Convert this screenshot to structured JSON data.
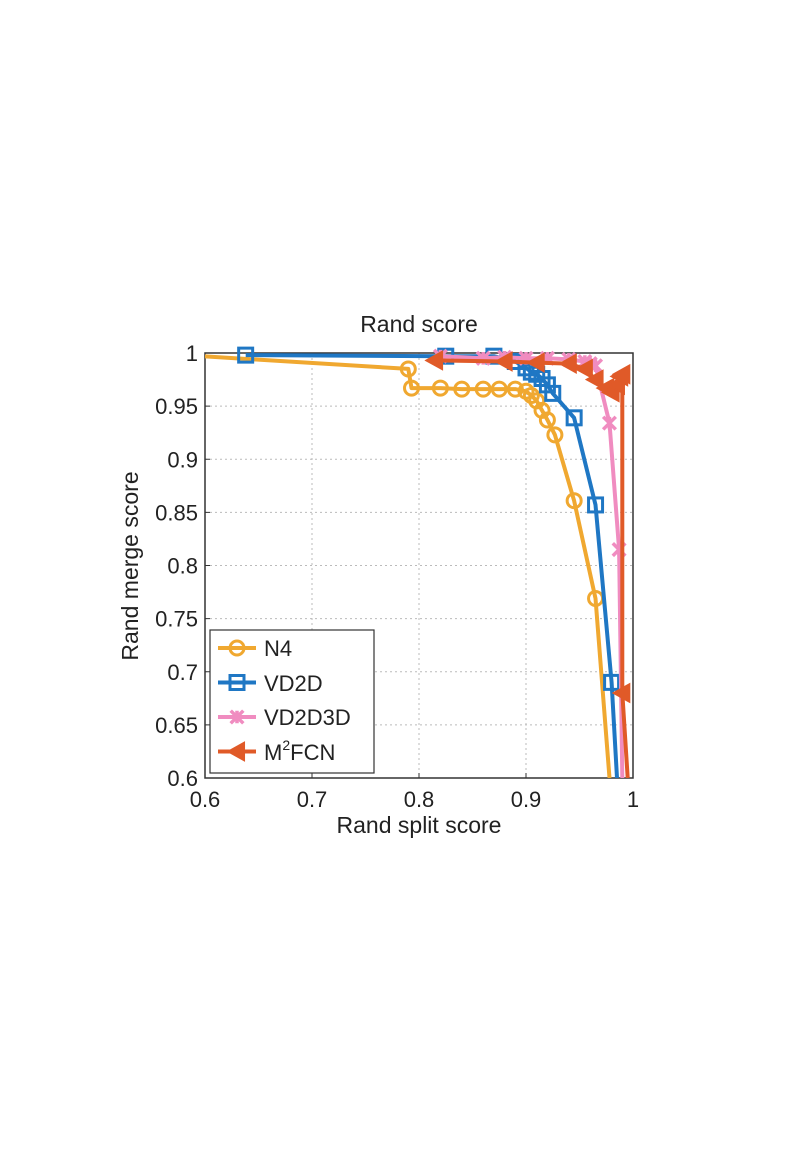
{
  "chart_data": {
    "type": "line",
    "title": "Rand score",
    "xlabel": "Rand split score",
    "ylabel": "Rand merge score",
    "xlim": [
      0.6,
      1
    ],
    "ylim": [
      0.6,
      1
    ],
    "xticks": [
      "0.6",
      "0.7",
      "0.8",
      "0.9",
      "1"
    ],
    "yticks": [
      "0.6",
      "0.65",
      "0.7",
      "0.75",
      "0.8",
      "0.85",
      "0.9",
      "0.95",
      "1"
    ],
    "grid": true,
    "legend_position": "bottom-left",
    "series": [
      {
        "name": "N4",
        "color": "#F0A830",
        "marker": "circle",
        "points": [
          [
            0.58,
            0.998
          ],
          [
            0.79,
            0.985
          ],
          [
            0.793,
            0.967
          ],
          [
            0.82,
            0.967
          ],
          [
            0.84,
            0.966
          ],
          [
            0.86,
            0.966
          ],
          [
            0.875,
            0.966
          ],
          [
            0.89,
            0.966
          ],
          [
            0.9,
            0.964
          ],
          [
            0.905,
            0.96
          ],
          [
            0.91,
            0.955
          ],
          [
            0.915,
            0.946
          ],
          [
            0.92,
            0.937
          ],
          [
            0.927,
            0.923
          ],
          [
            0.945,
            0.861
          ],
          [
            0.965,
            0.769
          ],
          [
            0.978,
            0.6
          ]
        ]
      },
      {
        "name": "VD2D",
        "color": "#1F77C4",
        "marker": "square",
        "points": [
          [
            0.638,
            0.998
          ],
          [
            0.825,
            0.997
          ],
          [
            0.87,
            0.997
          ],
          [
            0.89,
            0.992
          ],
          [
            0.9,
            0.986
          ],
          [
            0.905,
            0.982
          ],
          [
            0.91,
            0.98
          ],
          [
            0.915,
            0.976
          ],
          [
            0.92,
            0.97
          ],
          [
            0.925,
            0.962
          ],
          [
            0.945,
            0.939
          ],
          [
            0.965,
            0.857
          ],
          [
            0.98,
            0.69
          ],
          [
            0.985,
            0.6
          ]
        ]
      },
      {
        "name": "VD2D3D",
        "color": "#F08CC0",
        "marker": "x",
        "points": [
          [
            0.82,
            0.997
          ],
          [
            0.86,
            0.995
          ],
          [
            0.88,
            0.996
          ],
          [
            0.9,
            0.995
          ],
          [
            0.92,
            0.995
          ],
          [
            0.94,
            0.994
          ],
          [
            0.955,
            0.992
          ],
          [
            0.96,
            0.99
          ],
          [
            0.965,
            0.988
          ],
          [
            0.978,
            0.934
          ],
          [
            0.987,
            0.815
          ],
          [
            0.99,
            0.6
          ]
        ]
      },
      {
        "name": "M²FCN",
        "color": "#E05A28",
        "marker": "triangle-left",
        "points": [
          [
            0.815,
            0.993
          ],
          [
            0.88,
            0.992
          ],
          [
            0.91,
            0.991
          ],
          [
            0.94,
            0.99
          ],
          [
            0.955,
            0.985
          ],
          [
            0.965,
            0.975
          ],
          [
            0.975,
            0.967
          ],
          [
            0.98,
            0.963
          ],
          [
            0.985,
            0.97
          ],
          [
            0.988,
            0.978
          ],
          [
            0.99,
            0.98
          ],
          [
            0.99,
            0.68
          ],
          [
            0.995,
            0.6
          ]
        ]
      }
    ]
  },
  "legend": {
    "entries": [
      "N4",
      "VD2D",
      "VD2D3D",
      "M",
      "2",
      "FCN"
    ]
  }
}
